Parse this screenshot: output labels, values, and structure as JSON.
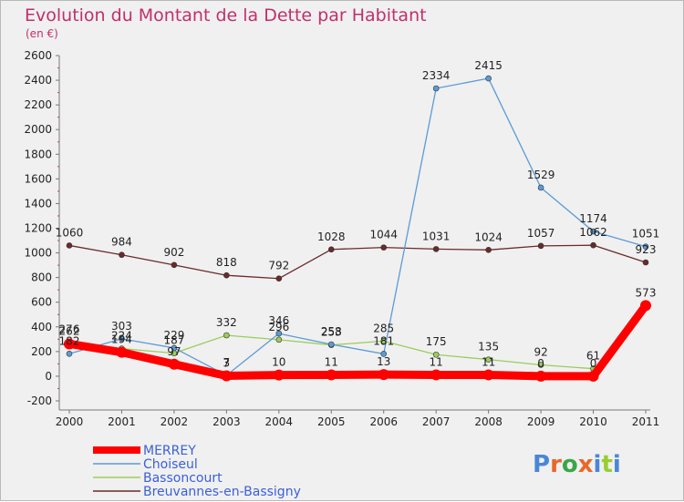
{
  "chart_data": {
    "type": "line",
    "title": "Evolution du Montant de la Dette par Habitant",
    "subtitle": "(en €)",
    "xlabel": "",
    "ylabel": "",
    "x": [
      "2000",
      "2001",
      "2002",
      "2003",
      "2004",
      "2005",
      "2006",
      "2007",
      "2008",
      "2009",
      "2010",
      "2011"
    ],
    "ylim": [
      -200,
      2600
    ],
    "yticks": [
      -200,
      0,
      200,
      400,
      600,
      800,
      1000,
      1200,
      1400,
      1600,
      1800,
      2000,
      2200,
      2400,
      2600
    ],
    "grid": false,
    "legend_position": "bottom-left",
    "series": [
      {
        "name": "MERREY",
        "color": "#ff0000",
        "values": [
          262,
          194,
          97,
          3,
          10,
          11,
          13,
          11,
          11,
          0,
          0,
          573
        ],
        "labels": [
          "262",
          "194",
          "97",
          "3",
          "10",
          "11",
          "13",
          "11",
          "11",
          "0",
          "0",
          "573"
        ]
      },
      {
        "name": "Choiseul",
        "color": "#5b9bd5",
        "values": [
          182,
          303,
          229,
          7,
          346,
          258,
          181,
          2334,
          2415,
          1529,
          1174,
          1051
        ],
        "labels": [
          "182",
          "303",
          "229",
          "7",
          "346",
          "258",
          "181",
          "2334",
          "2415",
          "1529",
          "1174",
          "1051"
        ]
      },
      {
        "name": "Bassoncourt",
        "color": "#9acd5a",
        "values": [
          276,
          224,
          187,
          332,
          296,
          253,
          285,
          175,
          135,
          92,
          61,
          null
        ],
        "labels": [
          "276",
          "224",
          "187",
          "332",
          "296",
          "253",
          "285",
          "175",
          "135",
          "92",
          "61",
          ""
        ]
      },
      {
        "name": "Breuvannes-en-Bassigny",
        "color": "#6b2a2a",
        "values": [
          1060,
          984,
          902,
          818,
          792,
          1028,
          1044,
          1031,
          1024,
          1057,
          1062,
          923
        ],
        "labels": [
          "1060",
          "984",
          "902",
          "818",
          "792",
          "1028",
          "1044",
          "1031",
          "1024",
          "1057",
          "1062",
          "923"
        ]
      }
    ]
  },
  "logo": {
    "text": "Proxiti"
  }
}
